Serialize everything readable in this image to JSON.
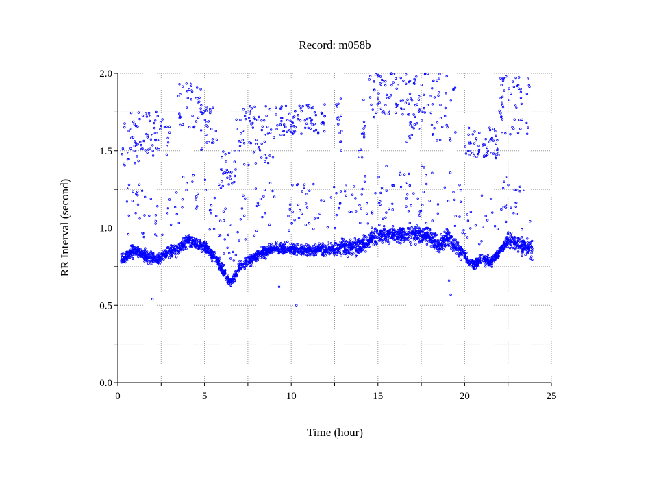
{
  "chart_data": {
    "type": "scatter",
    "title": "Record:  m058b",
    "xlabel": "Time (hour)",
    "ylabel": "RR Interval (second)",
    "xlim": [
      0,
      25
    ],
    "ylim": [
      0,
      2
    ],
    "x_ticks": [
      0,
      5,
      10,
      15,
      20,
      25
    ],
    "x_tick_labels": [
      "0",
      "5",
      "10",
      "15",
      "20",
      "25"
    ],
    "y_ticks": [
      0,
      0.5,
      1.0,
      1.5,
      2.0
    ],
    "y_tick_labels": [
      "0.0",
      "0.5",
      "1.0",
      "1.5",
      "2.0"
    ],
    "grid": true,
    "grid_style": "dotted",
    "marker": "open-circle",
    "series_color": "#0000ff",
    "x_range_of_data": [
      0.2,
      23.9
    ],
    "baseline_trend": [
      {
        "x": 0.2,
        "y": 0.8
      },
      {
        "x": 1.0,
        "y": 0.86
      },
      {
        "x": 1.5,
        "y": 0.82
      },
      {
        "x": 2.3,
        "y": 0.8
      },
      {
        "x": 3.0,
        "y": 0.85
      },
      {
        "x": 3.5,
        "y": 0.86
      },
      {
        "x": 4.0,
        "y": 0.92
      },
      {
        "x": 5.0,
        "y": 0.88
      },
      {
        "x": 5.7,
        "y": 0.8
      },
      {
        "x": 6.1,
        "y": 0.72
      },
      {
        "x": 6.5,
        "y": 0.64
      },
      {
        "x": 7.0,
        "y": 0.75
      },
      {
        "x": 8.0,
        "y": 0.82
      },
      {
        "x": 9.0,
        "y": 0.87
      },
      {
        "x": 10.0,
        "y": 0.86
      },
      {
        "x": 11.0,
        "y": 0.86
      },
      {
        "x": 12.0,
        "y": 0.86
      },
      {
        "x": 13.0,
        "y": 0.88
      },
      {
        "x": 14.0,
        "y": 0.88
      },
      {
        "x": 15.0,
        "y": 0.95
      },
      {
        "x": 16.0,
        "y": 0.96
      },
      {
        "x": 17.0,
        "y": 0.96
      },
      {
        "x": 18.0,
        "y": 0.95
      },
      {
        "x": 18.5,
        "y": 0.88
      },
      {
        "x": 19.0,
        "y": 0.94
      },
      {
        "x": 19.5,
        "y": 0.88
      },
      {
        "x": 20.0,
        "y": 0.82
      },
      {
        "x": 20.5,
        "y": 0.76
      },
      {
        "x": 21.0,
        "y": 0.8
      },
      {
        "x": 21.5,
        "y": 0.78
      },
      {
        "x": 22.0,
        "y": 0.84
      },
      {
        "x": 22.5,
        "y": 0.92
      },
      {
        "x": 23.0,
        "y": 0.9
      },
      {
        "x": 23.9,
        "y": 0.86
      }
    ],
    "outlier_clusters": [
      {
        "x_range": [
          0.2,
          1.5
        ],
        "y_range": [
          1.4,
          1.75
        ]
      },
      {
        "x_range": [
          1.5,
          3.0
        ],
        "y_range": [
          1.45,
          1.75
        ]
      },
      {
        "x_range": [
          3.5,
          4.8
        ],
        "y_range": [
          1.65,
          1.95
        ]
      },
      {
        "x_range": [
          4.8,
          5.8
        ],
        "y_range": [
          1.5,
          1.85
        ]
      },
      {
        "x_range": [
          5.8,
          6.8
        ],
        "y_range": [
          1.25,
          1.5
        ]
      },
      {
        "x_range": [
          6.8,
          9.0
        ],
        "y_range": [
          1.4,
          1.8
        ]
      },
      {
        "x_range": [
          9.0,
          12.0
        ],
        "y_range": [
          1.6,
          1.8
        ]
      },
      {
        "x_range": [
          12.5,
          13.0
        ],
        "y_range": [
          1.5,
          1.85
        ]
      },
      {
        "x_range": [
          13.9,
          14.3
        ],
        "y_range": [
          1.45,
          1.85
        ]
      },
      {
        "x_range": [
          14.5,
          16.5
        ],
        "y_range": [
          1.7,
          2.0
        ]
      },
      {
        "x_range": [
          16.5,
          19.5
        ],
        "y_range": [
          1.55,
          2.0
        ]
      },
      {
        "x_range": [
          20.0,
          22.0
        ],
        "y_range": [
          1.45,
          1.65
        ]
      },
      {
        "x_range": [
          22.0,
          23.8
        ],
        "y_range": [
          1.6,
          1.98
        ]
      }
    ]
  }
}
